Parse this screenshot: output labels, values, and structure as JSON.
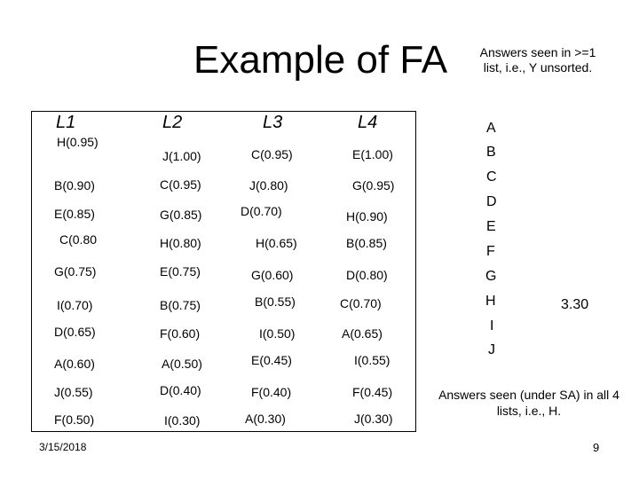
{
  "title": "Example of FA",
  "note_top": "Answers seen in >=1 list, i.e., Y unsorted.",
  "note_bottom": "Answers seen (under SA) in all 4 lists, i.e., H.",
  "date": "3/15/2018",
  "page_number": "9",
  "headers": [
    "L1",
    "L2",
    "L3",
    "L4"
  ],
  "lists": {
    "L1": [
      "H(0.95)",
      "B(0.90)",
      "E(0.85)",
      "C(0.80",
      "G(0.75)",
      "I(0.70)",
      "D(0.65)",
      "A(0.60)",
      "J(0.55)",
      "F(0.50)"
    ],
    "L2": [
      "J(1.00)",
      "C(0.95)",
      "G(0.85)",
      "H(0.80)",
      "E(0.75)",
      "B(0.75)",
      "F(0.60)",
      "A(0.50)",
      "D(0.40)",
      "I(0.30)"
    ],
    "L3": [
      "C(0.95)",
      "J(0.80)",
      "D(0.70)",
      "H(0.65)",
      "G(0.60)",
      "B(0.55)",
      "I(0.50)",
      "E(0.45)",
      "F(0.40)",
      "A(0.30)"
    ],
    "L4": [
      "E(1.00)",
      "G(0.95)",
      "H(0.90)",
      "B(0.85)",
      "D(0.80)",
      "C(0.70)",
      "A(0.65)",
      "I(0.55)",
      "F(0.45)",
      "J(0.30)"
    ]
  },
  "letters": [
    "A",
    "B",
    "C",
    "D",
    "E",
    "F",
    "G",
    "H",
    "I",
    "J"
  ],
  "score": "3.30"
}
